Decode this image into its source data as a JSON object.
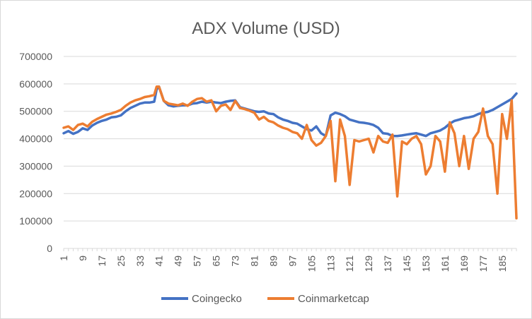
{
  "chart_data": {
    "type": "line",
    "title": "ADX Volume (USD)",
    "xlabel": "",
    "ylabel": "",
    "ylim": [
      0,
      700000
    ],
    "yticks": [
      0,
      100000,
      200000,
      300000,
      400000,
      500000,
      600000,
      700000
    ],
    "ytick_labels": [
      "0",
      "100000",
      "200000",
      "300000",
      "400000",
      "500000",
      "600000",
      "700000"
    ],
    "xtick_labels": [
      "1",
      "9",
      "17",
      "25",
      "33",
      "41",
      "49",
      "57",
      "65",
      "73",
      "81",
      "89",
      "97",
      "105",
      "113",
      "121",
      "129",
      "137",
      "145",
      "153",
      "161",
      "169",
      "177",
      "185"
    ],
    "x": [
      1,
      3,
      5,
      7,
      9,
      11,
      13,
      15,
      17,
      19,
      21,
      23,
      25,
      27,
      29,
      31,
      33,
      35,
      37,
      39,
      40,
      41,
      43,
      45,
      47,
      49,
      51,
      53,
      55,
      57,
      59,
      61,
      63,
      65,
      67,
      69,
      71,
      73,
      75,
      77,
      79,
      81,
      83,
      85,
      87,
      89,
      91,
      93,
      95,
      97,
      99,
      101,
      103,
      105,
      107,
      109,
      111,
      113,
      115,
      117,
      119,
      121,
      123,
      125,
      127,
      129,
      131,
      133,
      135,
      137,
      139,
      141,
      143,
      145,
      147,
      149,
      151,
      153,
      155,
      157,
      159,
      161,
      163,
      165,
      167,
      169,
      171,
      173,
      175,
      177,
      179,
      181,
      183,
      185,
      187,
      189,
      191
    ],
    "grid": true,
    "legend_position": "bottom",
    "series": [
      {
        "name": "Coingecko",
        "color": "#4472C4",
        "values": [
          420000,
          428000,
          418000,
          425000,
          438000,
          432000,
          448000,
          458000,
          465000,
          470000,
          478000,
          480000,
          485000,
          500000,
          512000,
          520000,
          528000,
          532000,
          532000,
          535000,
          580000,
          590000,
          538000,
          522000,
          518000,
          520000,
          522000,
          522000,
          528000,
          530000,
          535000,
          532000,
          535000,
          532000,
          530000,
          535000,
          538000,
          540000,
          515000,
          510000,
          505000,
          500000,
          498000,
          500000,
          492000,
          490000,
          478000,
          470000,
          465000,
          458000,
          455000,
          445000,
          435000,
          430000,
          445000,
          420000,
          410000,
          485000,
          495000,
          490000,
          482000,
          470000,
          465000,
          460000,
          458000,
          455000,
          450000,
          440000,
          420000,
          418000,
          410000,
          410000,
          412000,
          415000,
          418000,
          420000,
          415000,
          410000,
          420000,
          425000,
          430000,
          440000,
          455000,
          465000,
          470000,
          475000,
          478000,
          482000,
          490000,
          495000,
          498000,
          505000,
          515000,
          525000,
          535000,
          545000,
          565000
        ]
      },
      {
        "name": "Coinmarketcap",
        "color": "#ED7D31",
        "values": [
          440000,
          445000,
          432000,
          450000,
          455000,
          445000,
          462000,
          472000,
          480000,
          488000,
          492000,
          498000,
          505000,
          520000,
          532000,
          540000,
          545000,
          552000,
          555000,
          560000,
          590000,
          590000,
          538000,
          528000,
          525000,
          522000,
          528000,
          520000,
          535000,
          545000,
          548000,
          535000,
          540000,
          500000,
          520000,
          525000,
          505000,
          538000,
          512000,
          508000,
          502000,
          495000,
          470000,
          480000,
          465000,
          460000,
          448000,
          440000,
          435000,
          425000,
          420000,
          400000,
          450000,
          395000,
          375000,
          385000,
          410000,
          465000,
          245000,
          470000,
          410000,
          232000,
          395000,
          390000,
          395000,
          400000,
          350000,
          410000,
          390000,
          385000,
          415000,
          190000,
          390000,
          380000,
          400000,
          410000,
          380000,
          270000,
          300000,
          410000,
          390000,
          280000,
          460000,
          420000,
          300000,
          410000,
          290000,
          400000,
          425000,
          510000,
          410000,
          380000,
          200000,
          490000,
          400000,
          540000,
          110000
        ]
      }
    ]
  }
}
